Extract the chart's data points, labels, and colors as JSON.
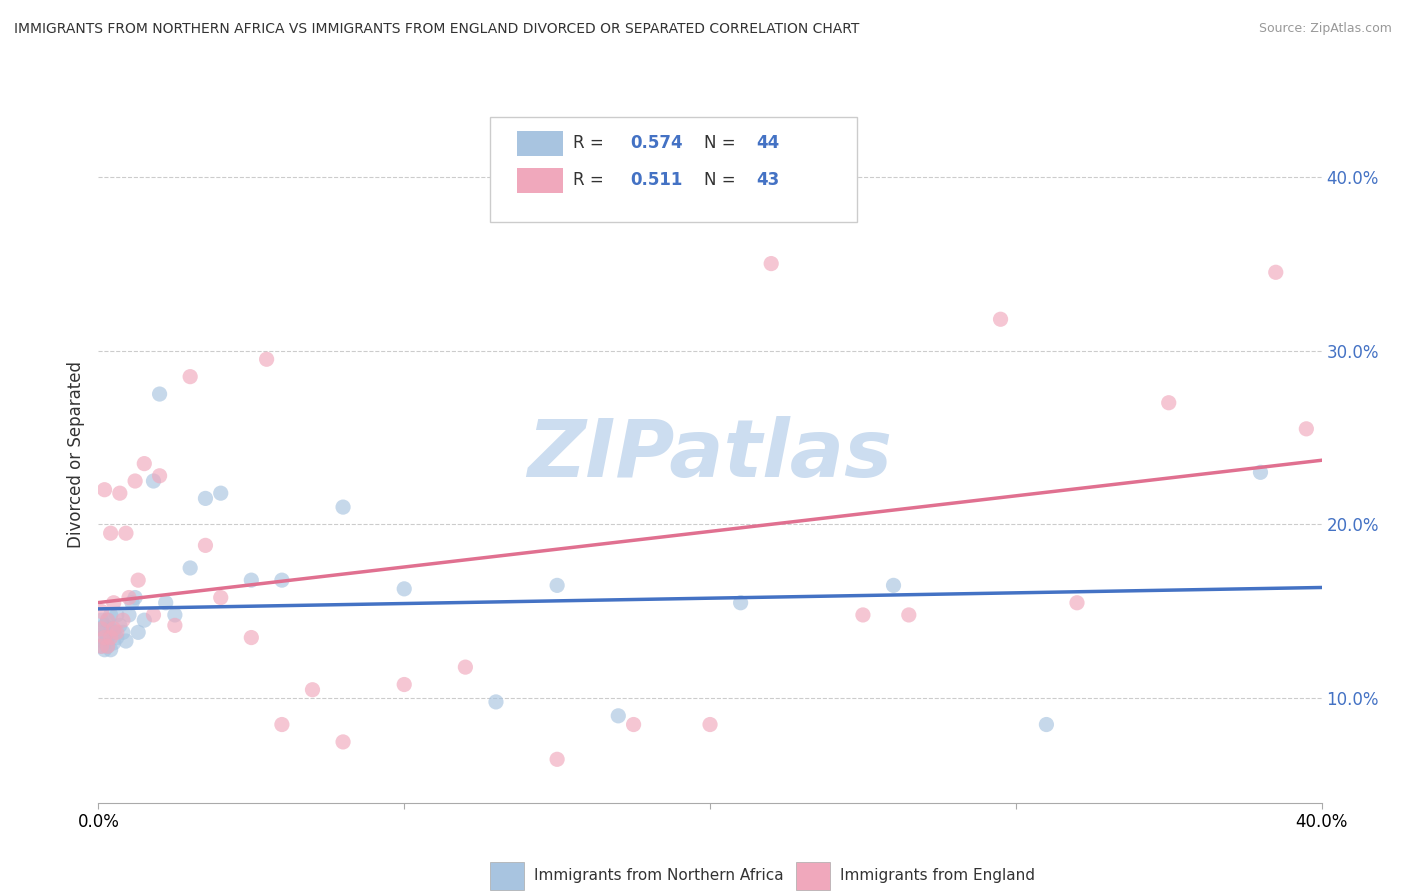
{
  "title": "IMMIGRANTS FROM NORTHERN AFRICA VS IMMIGRANTS FROM ENGLAND DIVORCED OR SEPARATED CORRELATION CHART",
  "source": "Source: ZipAtlas.com",
  "ylabel": "Divorced or Separated",
  "xlabel_blue": "Immigrants from Northern Africa",
  "xlabel_pink": "Immigrants from England",
  "xlim": [
    0.0,
    0.4
  ],
  "ylim": [
    0.04,
    0.44
  ],
  "R_blue": 0.574,
  "N_blue": 44,
  "R_pink": 0.511,
  "N_pink": 43,
  "color_blue": "#a8c4e0",
  "color_pink": "#f0a8bc",
  "line_color_blue": "#4472c4",
  "line_color_pink": "#e07090",
  "watermark": "ZIPatlas",
  "watermark_color": "#ccddf0",
  "background_color": "#ffffff",
  "grid_color": "#cccccc",
  "blue_scatter_x": [
    0.001,
    0.001,
    0.001,
    0.001,
    0.002,
    0.002,
    0.002,
    0.002,
    0.003,
    0.003,
    0.003,
    0.004,
    0.004,
    0.004,
    0.005,
    0.005,
    0.006,
    0.006,
    0.007,
    0.008,
    0.009,
    0.01,
    0.011,
    0.012,
    0.013,
    0.015,
    0.018,
    0.02,
    0.022,
    0.025,
    0.03,
    0.035,
    0.04,
    0.05,
    0.06,
    0.08,
    0.1,
    0.13,
    0.15,
    0.17,
    0.21,
    0.26,
    0.31,
    0.38
  ],
  "blue_scatter_y": [
    0.13,
    0.135,
    0.14,
    0.145,
    0.128,
    0.132,
    0.138,
    0.142,
    0.13,
    0.135,
    0.145,
    0.128,
    0.14,
    0.148,
    0.132,
    0.138,
    0.135,
    0.148,
    0.142,
    0.138,
    0.133,
    0.148,
    0.155,
    0.158,
    0.138,
    0.145,
    0.225,
    0.275,
    0.155,
    0.148,
    0.175,
    0.215,
    0.218,
    0.168,
    0.168,
    0.21,
    0.163,
    0.098,
    0.165,
    0.09,
    0.155,
    0.165,
    0.085,
    0.23
  ],
  "pink_scatter_x": [
    0.001,
    0.001,
    0.001,
    0.002,
    0.002,
    0.003,
    0.003,
    0.004,
    0.004,
    0.005,
    0.005,
    0.006,
    0.007,
    0.008,
    0.009,
    0.01,
    0.012,
    0.013,
    0.015,
    0.018,
    0.02,
    0.025,
    0.03,
    0.035,
    0.04,
    0.05,
    0.055,
    0.06,
    0.07,
    0.08,
    0.1,
    0.12,
    0.15,
    0.175,
    0.2,
    0.22,
    0.25,
    0.265,
    0.295,
    0.32,
    0.35,
    0.385,
    0.395
  ],
  "pink_scatter_y": [
    0.13,
    0.14,
    0.15,
    0.22,
    0.135,
    0.13,
    0.145,
    0.135,
    0.195,
    0.14,
    0.155,
    0.138,
    0.218,
    0.145,
    0.195,
    0.158,
    0.225,
    0.168,
    0.235,
    0.148,
    0.228,
    0.142,
    0.285,
    0.188,
    0.158,
    0.135,
    0.295,
    0.085,
    0.105,
    0.075,
    0.108,
    0.118,
    0.065,
    0.085,
    0.085,
    0.35,
    0.148,
    0.148,
    0.318,
    0.155,
    0.27,
    0.345,
    0.255
  ]
}
